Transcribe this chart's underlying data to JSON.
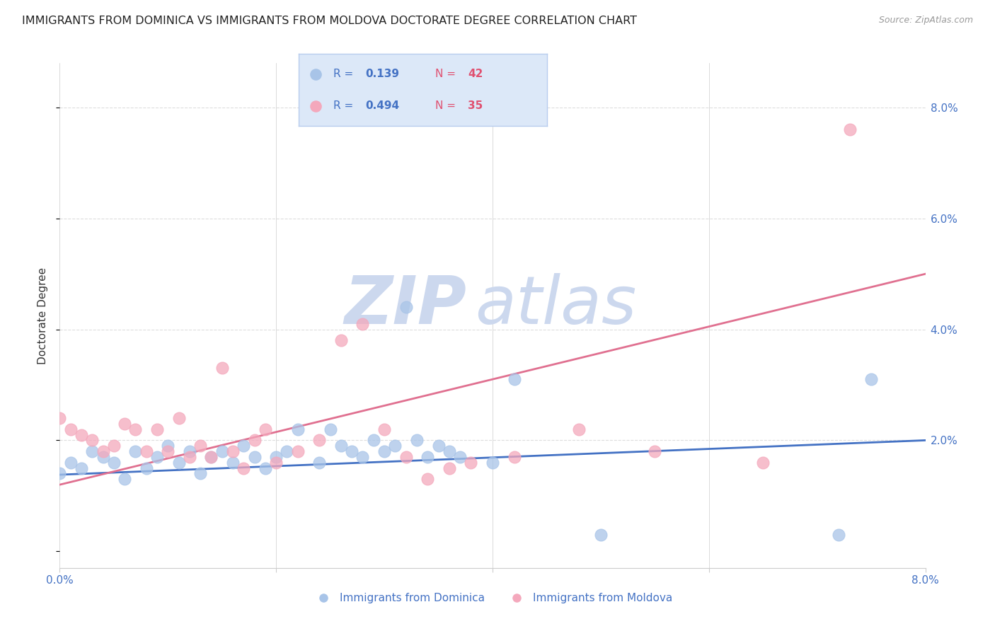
{
  "title": "IMMIGRANTS FROM DOMINICA VS IMMIGRANTS FROM MOLDOVA DOCTORATE DEGREE CORRELATION CHART",
  "source": "Source: ZipAtlas.com",
  "ylabel": "Doctorate Degree",
  "x_min": 0.0,
  "x_max": 0.08,
  "y_min": -0.003,
  "y_max": 0.088,
  "x_ticks": [
    0.0,
    0.02,
    0.04,
    0.06,
    0.08
  ],
  "y_ticks_right": [
    0.02,
    0.04,
    0.06,
    0.08
  ],
  "y_tick_labels_right": [
    "2.0%",
    "4.0%",
    "6.0%",
    "8.0%"
  ],
  "grid_color": "#dddddd",
  "background_color": "#ffffff",
  "series_dominica": {
    "name": "Immigrants from Dominica",
    "color": "#a8c4e8",
    "R": 0.139,
    "N": 42,
    "x": [
      0.0,
      0.001,
      0.002,
      0.003,
      0.004,
      0.005,
      0.006,
      0.007,
      0.008,
      0.009,
      0.01,
      0.011,
      0.012,
      0.013,
      0.014,
      0.015,
      0.016,
      0.017,
      0.018,
      0.019,
      0.02,
      0.021,
      0.022,
      0.024,
      0.025,
      0.026,
      0.027,
      0.028,
      0.029,
      0.03,
      0.031,
      0.032,
      0.033,
      0.034,
      0.035,
      0.036,
      0.037,
      0.04,
      0.042,
      0.05,
      0.072,
      0.075
    ],
    "y": [
      0.014,
      0.016,
      0.015,
      0.018,
      0.017,
      0.016,
      0.013,
      0.018,
      0.015,
      0.017,
      0.019,
      0.016,
      0.018,
      0.014,
      0.017,
      0.018,
      0.016,
      0.019,
      0.017,
      0.015,
      0.017,
      0.018,
      0.022,
      0.016,
      0.022,
      0.019,
      0.018,
      0.017,
      0.02,
      0.018,
      0.019,
      0.044,
      0.02,
      0.017,
      0.019,
      0.018,
      0.017,
      0.016,
      0.031,
      0.003,
      0.003,
      0.031
    ]
  },
  "series_moldova": {
    "name": "Immigrants from Moldova",
    "color": "#f4a8bc",
    "R": 0.494,
    "N": 35,
    "x": [
      0.0,
      0.001,
      0.002,
      0.003,
      0.004,
      0.005,
      0.006,
      0.007,
      0.008,
      0.009,
      0.01,
      0.011,
      0.012,
      0.013,
      0.014,
      0.015,
      0.016,
      0.017,
      0.018,
      0.019,
      0.02,
      0.022,
      0.024,
      0.026,
      0.028,
      0.03,
      0.032,
      0.034,
      0.036,
      0.038,
      0.042,
      0.048,
      0.055,
      0.065,
      0.073
    ],
    "y": [
      0.024,
      0.022,
      0.021,
      0.02,
      0.018,
      0.019,
      0.023,
      0.022,
      0.018,
      0.022,
      0.018,
      0.024,
      0.017,
      0.019,
      0.017,
      0.033,
      0.018,
      0.015,
      0.02,
      0.022,
      0.016,
      0.018,
      0.02,
      0.038,
      0.041,
      0.022,
      0.017,
      0.013,
      0.015,
      0.016,
      0.017,
      0.022,
      0.018,
      0.016,
      0.076
    ]
  },
  "legend_box_color": "#dce8f8",
  "legend_border_color": "#b8ccee",
  "dominica_line_color": "#4472c4",
  "moldova_line_color": "#e07090",
  "watermark_zip": "ZIP",
  "watermark_atlas": "atlas",
  "watermark_color": "#ccd8ee",
  "title_fontsize": 11.5,
  "axis_label_fontsize": 11,
  "tick_fontsize": 11,
  "source_fontsize": 9
}
